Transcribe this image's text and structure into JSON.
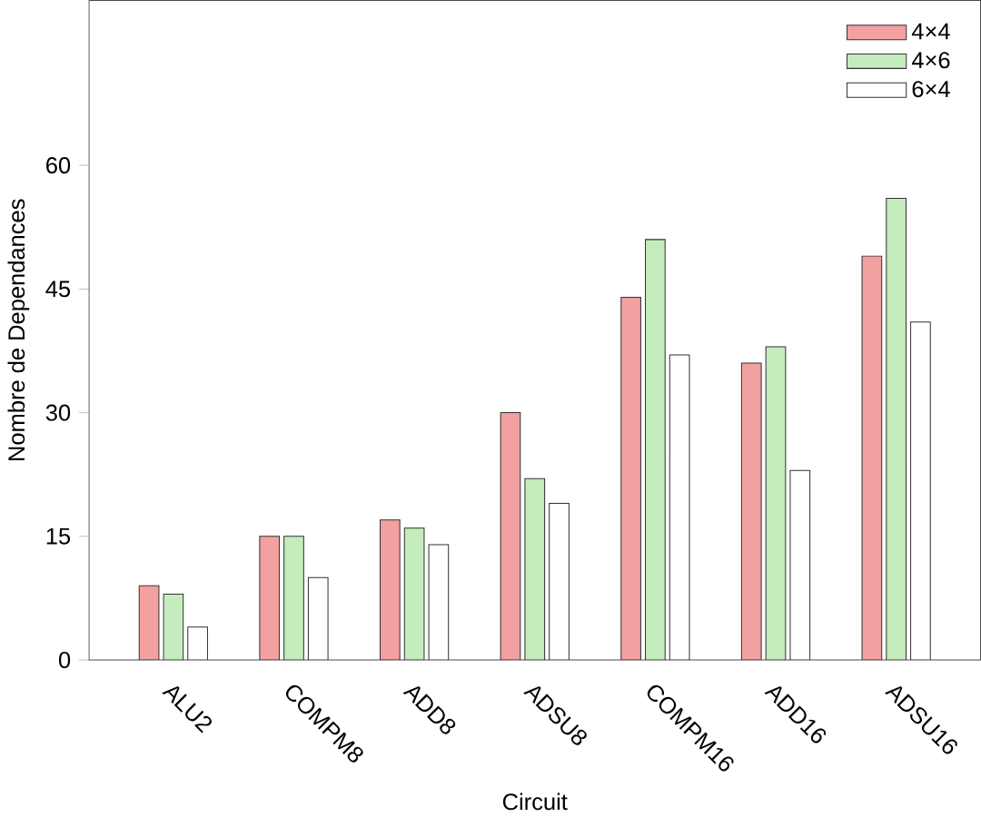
{
  "chart_data": {
    "type": "bar",
    "xlabel": "Circuit",
    "ylabel": "Nombre de Dependances",
    "categories": [
      "ALU2",
      "COMPM8",
      "ADD8",
      "ADSU8",
      "COMPM16",
      "ADD16",
      "ADSU16"
    ],
    "series": [
      {
        "name": "4×4",
        "color": "#f2a0a0",
        "values": [
          9,
          15,
          17,
          30,
          44,
          36,
          49
        ]
      },
      {
        "name": "4×6",
        "color": "#c4ecbc",
        "values": [
          8,
          15,
          16,
          22,
          51,
          38,
          56
        ]
      },
      {
        "name": "6×4",
        "color": "#ffffff",
        "values": [
          4,
          10,
          14,
          19,
          37,
          23,
          41
        ]
      }
    ],
    "ylim": [
      0,
      80
    ],
    "yticks": [
      0,
      15,
      30,
      45,
      60
    ],
    "grid": false,
    "legend": "top right"
  }
}
